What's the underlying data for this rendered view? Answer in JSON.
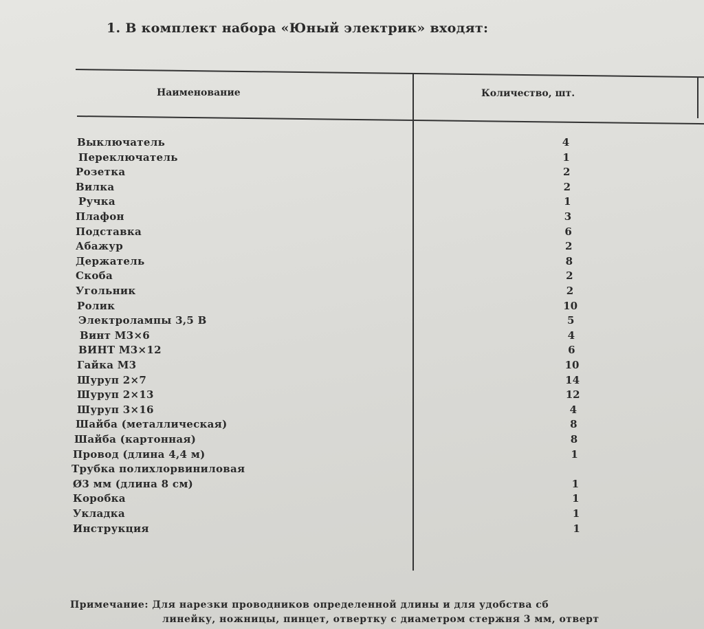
{
  "title": "1. В комплект набора «Юный электрик» входят:",
  "table": {
    "headers": {
      "name": "Наименование",
      "quantity": "Количество, шт."
    },
    "rows": [
      {
        "name": "Выключатель",
        "quantity": "4"
      },
      {
        "name": "Переключатель",
        "quantity": "1"
      },
      {
        "name": "Розетка",
        "quantity": "2"
      },
      {
        "name": "Вилка",
        "quantity": "2"
      },
      {
        "name": "Ручка",
        "quantity": "1"
      },
      {
        "name": "Плафон",
        "quantity": "3"
      },
      {
        "name": "Подставка",
        "quantity": "6"
      },
      {
        "name": "Абажур",
        "quantity": "2"
      },
      {
        "name": "Держатель",
        "quantity": "8"
      },
      {
        "name": "Скоба",
        "quantity": "2"
      },
      {
        "name": "Угольник",
        "quantity": "2"
      },
      {
        "name": "Ролик",
        "quantity": "10"
      },
      {
        "name": "Электролампы 3,5 В",
        "quantity": "5"
      },
      {
        "name": "Винт М3×6",
        "quantity": "4"
      },
      {
        "name": "ВИНТ М3×12",
        "quantity": "6"
      },
      {
        "name": "Гайка М3",
        "quantity": "10"
      },
      {
        "name": "Шуруп 2×7",
        "quantity": "14"
      },
      {
        "name": "Шуруп 2×13",
        "quantity": "12"
      },
      {
        "name": "Шуруп 3×16",
        "quantity": "4"
      },
      {
        "name": "Шайба (металлическая)",
        "quantity": "8"
      },
      {
        "name": "Шайба (картонная)",
        "quantity": "8"
      },
      {
        "name": "Провод (длина 4,4 м)",
        "quantity": "1"
      },
      {
        "name": "Трубка полихлорвиниловая",
        "quantity": ""
      },
      {
        "name": "Ø3 мм (длина 8 см)",
        "quantity": "1"
      },
      {
        "name": "Коробка",
        "quantity": "1"
      },
      {
        "name": "Укладка",
        "quantity": "1"
      },
      {
        "name": "Инструкция",
        "quantity": "1"
      }
    ]
  },
  "note": {
    "line1": "Примечание: Для нарезки проводников определенной длины и для удобства сб",
    "line2": "линейку, ножницы, пинцет, отвертку с диаметром стержня 3 мм, отверт"
  }
}
